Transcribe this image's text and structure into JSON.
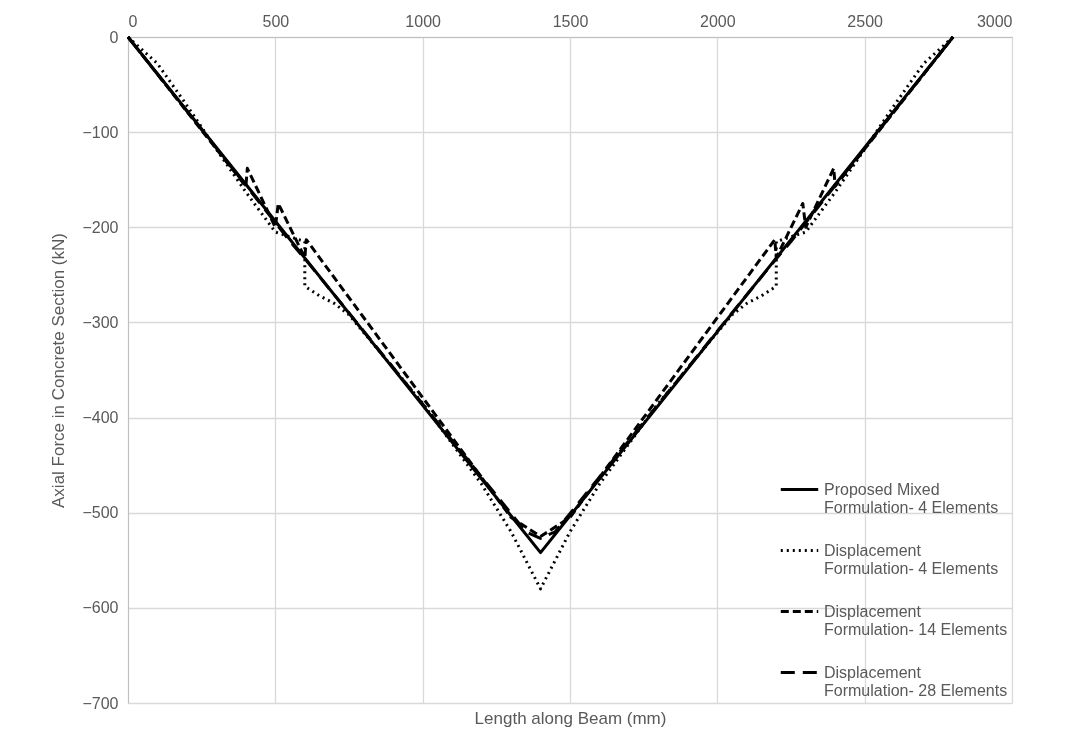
{
  "chart_data": {
    "type": "line",
    "xlabel": "Length along Beam (mm)",
    "ylabel": "Axial Force in Concrete Section (kN)",
    "xlim": [
      0,
      3000
    ],
    "ylim": [
      -700,
      0
    ],
    "xticks": [
      0,
      500,
      1000,
      1500,
      2000,
      2500,
      3000
    ],
    "yticks": [
      -700,
      -600,
      -500,
      -400,
      -300,
      -200,
      -100,
      0
    ],
    "grid": true,
    "legend": "bottom right",
    "marker": "none",
    "series": [
      {
        "name": "Proposed Mixed Formulation- 4 Elements",
        "color": "#000000",
        "line_style": "solid",
        "x": [
          0,
          1400,
          2800
        ],
        "values": [
          0,
          -542,
          0
        ]
      },
      {
        "name": "Displacement Formulation- 4 Elements",
        "color": "#000000",
        "line_style": "dotted",
        "x": [
          0,
          100,
          200,
          300,
          400,
          500,
          600,
          600,
          650,
          700,
          750,
          1000,
          1200,
          1300,
          1400,
          1500,
          1600,
          1800,
          2050,
          2100,
          2150,
          2200,
          2200,
          2300,
          2400,
          2500,
          2600,
          2700,
          2800
        ],
        "values": [
          0,
          -28,
          -72,
          -118,
          -163,
          -205,
          -215,
          -262,
          -272,
          -280,
          -292,
          -385,
          -470,
          -520,
          -580,
          -520,
          -470,
          -385,
          -292,
          -280,
          -272,
          -262,
          -215,
          -205,
          -163,
          -118,
          -72,
          -28,
          0
        ]
      },
      {
        "name": "Displacement Formulation- 14 Elements",
        "color": "#000000",
        "line_style": "dashed",
        "x": [
          0,
          400,
          405,
          500,
          510,
          600,
          605,
          1300,
          1400,
          1500,
          2195,
          2200,
          2290,
          2300,
          2395,
          2400,
          2800
        ],
        "values": [
          0,
          -157,
          -138,
          -200,
          -175,
          -232,
          -213,
          -505,
          -525,
          -505,
          -213,
          -232,
          -175,
          -200,
          -138,
          -157,
          0
        ]
      },
      {
        "name": "Displacement Formulation- 28 Elements",
        "color": "#000000",
        "line_style": "dashed",
        "x": [
          0,
          500,
          550,
          600,
          750,
          1350,
          1400,
          1450,
          2050,
          2200,
          2250,
          2300,
          2800
        ],
        "values": [
          0,
          -195,
          -215,
          -233,
          -290,
          -520,
          -527,
          -520,
          -290,
          -233,
          -215,
          -195,
          0
        ]
      }
    ]
  }
}
